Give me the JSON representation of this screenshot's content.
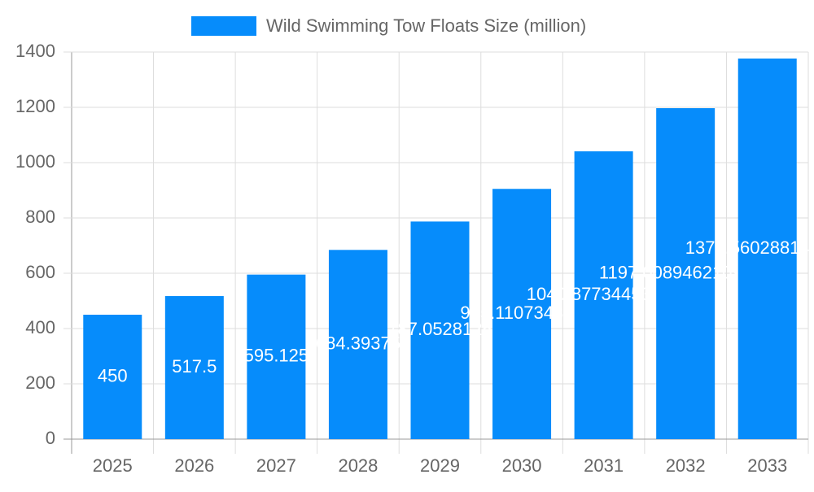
{
  "chart_data": {
    "type": "bar",
    "legend": "Wild Swimming Tow Floats Size (million)",
    "categories": [
      "2025",
      "2026",
      "2027",
      "2028",
      "2029",
      "2030",
      "2031",
      "2032",
      "2033"
    ],
    "values": [
      450,
      517.5,
      595.125,
      684.39375,
      787.0528125,
      905.110734375,
      1040.87734453125,
      1197.0089462109374,
      1376.560288142578
    ],
    "color": "#068cfb",
    "ylim": [
      0,
      1400
    ],
    "yticks": [
      0,
      200,
      400,
      600,
      800,
      1000,
      1200,
      1400
    ],
    "grid": true
  }
}
